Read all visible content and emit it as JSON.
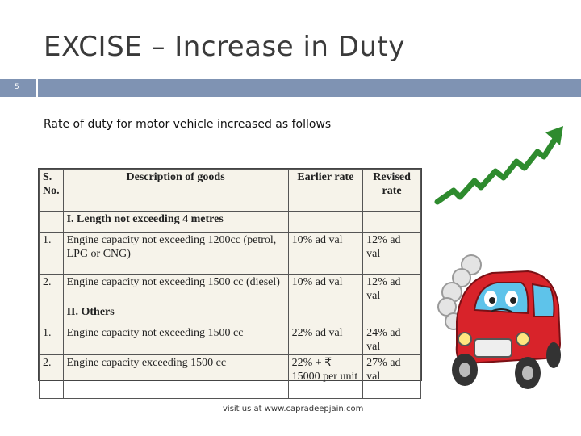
{
  "slide": {
    "title": "EXCISE – Increase in Duty",
    "number": "5",
    "subtitle": "Rate of duty for motor vehicle increased as follows",
    "footer": "visit us at www.capradeepjain.com"
  },
  "table": {
    "headers": {
      "sno": "S. No.",
      "desc": "Description of goods",
      "earlier": "Earlier rate",
      "revised": "Revised rate"
    },
    "section1": "I.      Length not exceeding 4 metres",
    "rows1": [
      {
        "sno": "1.",
        "desc": "Engine capacity not exceeding 1200cc (petrol, LPG or CNG)",
        "earlier": "10% ad val",
        "revised": "12% ad val"
      },
      {
        "sno": "2.",
        "desc": "Engine capacity not exceeding 1500 cc (diesel)",
        "earlier": "10% ad val",
        "revised": "12% ad val"
      }
    ],
    "section2": "II.     Others",
    "rows2": [
      {
        "sno": "1.",
        "desc": "Engine capacity not exceeding 1500 cc",
        "earlier": "22% ad val",
        "revised": "24% ad val"
      },
      {
        "sno": "2.",
        "desc": "Engine capacity exceeding 1500 cc",
        "earlier": "22% + ₹ 15000 per unit",
        "revised": "27% ad val"
      }
    ]
  },
  "colors": {
    "bar": "#7f93b3",
    "arrow": "#2e8b2e",
    "car": "#d8232a"
  }
}
